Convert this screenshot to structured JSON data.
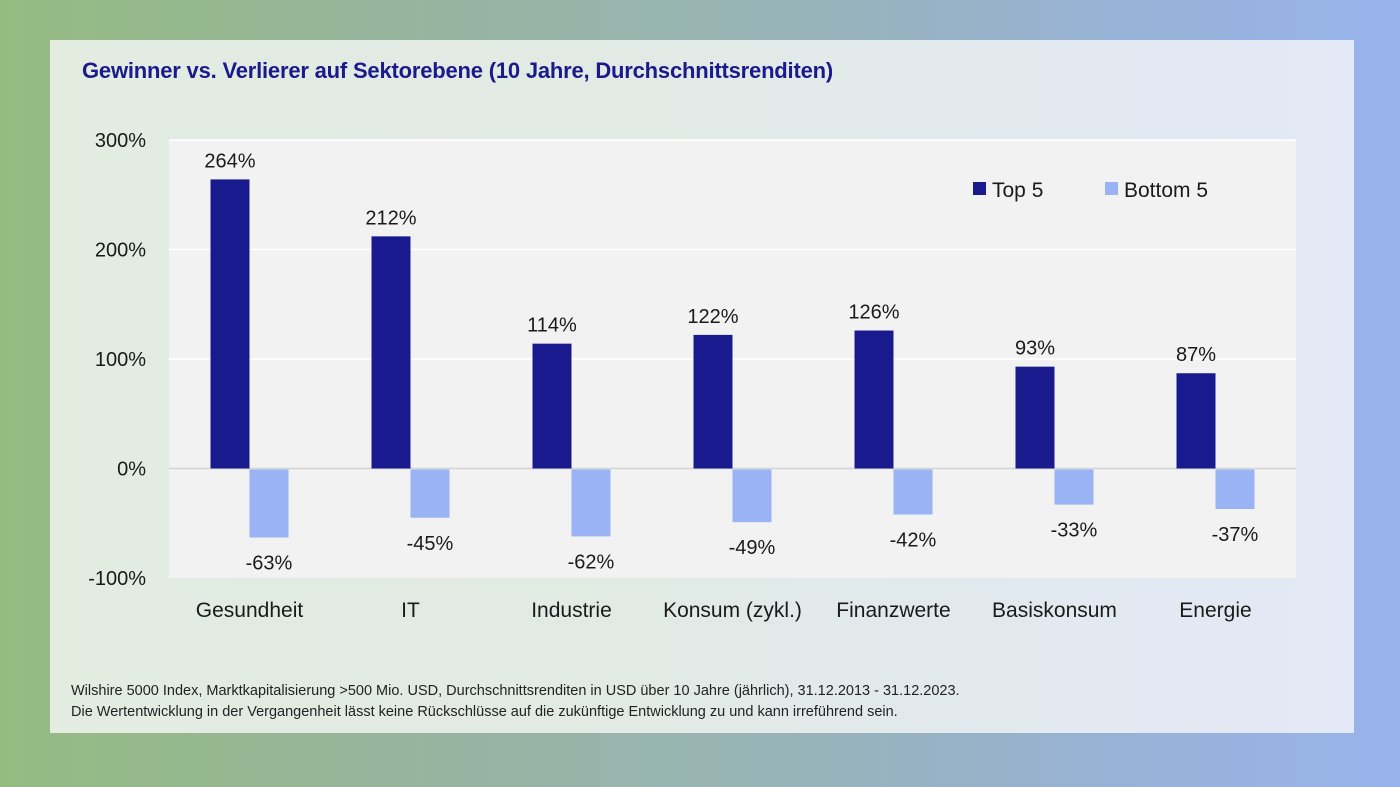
{
  "header": {
    "title": "Gewinner vs. Verlierer auf Sektorebene (10 Jahre, Durchschnittsrenditen)"
  },
  "colors": {
    "title": "#1a1a8c",
    "top": "#1a1a8f",
    "bottom": "#9ab3f5",
    "plot_bg": "#f2f2f2",
    "grid": "#ffffff",
    "zero_line": "#d4d4d4",
    "text": "#1a1a1a"
  },
  "chart_data": {
    "type": "bar",
    "title": "Gewinner vs. Verlierer auf Sektorebene (10 Jahre, Durchschnittsrenditen)",
    "xlabel": "",
    "ylabel": "",
    "categories": [
      "Gesundheit",
      "IT",
      "Industrie",
      "Konsum (zykl.)",
      "Finanzwerte",
      "Basiskonsum",
      "Energie"
    ],
    "series": [
      {
        "name": "Top 5",
        "values": [
          264,
          212,
          114,
          122,
          126,
          93,
          87
        ],
        "labels": [
          "264%",
          "212%",
          "114%",
          "122%",
          "126%",
          "93%",
          "87%"
        ]
      },
      {
        "name": "Bottom 5",
        "values": [
          -63,
          -45,
          -62,
          -49,
          -42,
          -33,
          -37
        ],
        "labels": [
          "-63%",
          "-45%",
          "-62%",
          "-49%",
          "-42%",
          "-33%",
          "-37%"
        ]
      }
    ],
    "ylim": [
      -100,
      300
    ],
    "yticks": [
      300,
      200,
      100,
      0,
      -100
    ],
    "ytick_labels": [
      "300%",
      "200%",
      "100%",
      "0%",
      "-100%"
    ],
    "grid": true,
    "legend_position": "top-right"
  },
  "footnote": {
    "line1": "Wilshire 5000 Index, Marktkapitalisierung >500 Mio. USD, Durchschnittsrenditen in USD über 10 Jahre (jährlich), 31.12.2013 - 31.12.2023.",
    "line2": "Die Wertentwicklung in der Vergangenheit lässt keine Rückschlüsse auf die zukünftige Entwicklung zu und kann irreführend sein."
  }
}
